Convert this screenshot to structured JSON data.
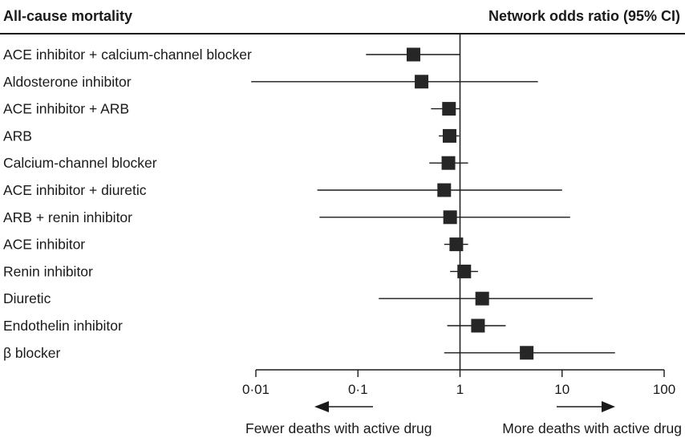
{
  "header": {
    "left_title": "All-cause mortality",
    "right_title": "Network odds ratio (95% CI)"
  },
  "chart_data": {
    "type": "forest",
    "title": "All-cause mortality",
    "effect_label": "Network odds ratio (95% CI)",
    "x_scale": "log",
    "xlim": [
      0.01,
      100
    ],
    "x_ticks": [
      0.01,
      0.1,
      1,
      10,
      100
    ],
    "x_tick_labels": [
      "0·01",
      "0·1",
      "1",
      "10",
      "100"
    ],
    "reference_line": 1,
    "rows": [
      {
        "label": "ACE inhibitor + calcium-channel blocker",
        "or": 0.35,
        "lower": 0.12,
        "upper": 1.0
      },
      {
        "label": "Aldosterone inhibitor",
        "or": 0.42,
        "lower": 0.009,
        "upper": 5.8
      },
      {
        "label": "ACE inhibitor + ARB",
        "or": 0.78,
        "lower": 0.52,
        "upper": 1.0
      },
      {
        "label": "ARB",
        "or": 0.79,
        "lower": 0.62,
        "upper": 0.98
      },
      {
        "label": "Calcium-channel blocker",
        "or": 0.77,
        "lower": 0.5,
        "upper": 1.2
      },
      {
        "label": "ACE inhibitor + diuretic",
        "or": 0.7,
        "lower": 0.04,
        "upper": 10.0
      },
      {
        "label": "ARB + renin inhibitor",
        "or": 0.8,
        "lower": 0.042,
        "upper": 12.0
      },
      {
        "label": "ACE inhibitor",
        "or": 0.92,
        "lower": 0.7,
        "upper": 1.2
      },
      {
        "label": "Renin inhibitor",
        "or": 1.1,
        "lower": 0.8,
        "upper": 1.5
      },
      {
        "label": "Diuretic",
        "or": 1.65,
        "lower": 0.16,
        "upper": 20.0
      },
      {
        "label": "Endothelin inhibitor",
        "or": 1.5,
        "lower": 0.75,
        "upper": 2.8
      },
      {
        "label": "β blocker",
        "or": 4.5,
        "lower": 0.7,
        "upper": 33.0
      }
    ],
    "annotations": {
      "left": "Fewer deaths with active drug",
      "right": "More deaths with active drug"
    }
  }
}
